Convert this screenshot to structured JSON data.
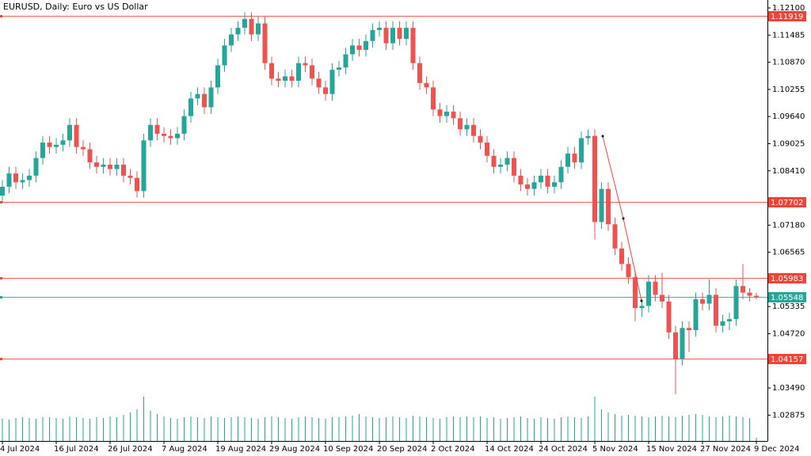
{
  "chart_data": {
    "type": "candlestick",
    "title": "EURUSD, Daily:  Euro vs US Dollar",
    "up_color": "#26a69a",
    "down_color": "#ef5350",
    "volume_color": "#26a69a",
    "categories": [
      "4 Jul 2024",
      null,
      null,
      null,
      null,
      null,
      null,
      null,
      "16 Jul 2024",
      null,
      null,
      null,
      null,
      null,
      null,
      null,
      "26 Jul 2024",
      null,
      null,
      null,
      null,
      null,
      null,
      null,
      "7 Aug 2024",
      null,
      null,
      null,
      null,
      null,
      null,
      null,
      "19 Aug 2024",
      null,
      null,
      null,
      null,
      null,
      null,
      null,
      "29 Aug 2024",
      null,
      null,
      null,
      null,
      null,
      null,
      null,
      "10 Sep 2024",
      null,
      null,
      null,
      null,
      null,
      null,
      null,
      "20 Sep 2024",
      null,
      null,
      null,
      null,
      null,
      null,
      null,
      "2 Oct 2024",
      null,
      null,
      null,
      null,
      null,
      null,
      null,
      "14 Oct 2024",
      null,
      null,
      null,
      null,
      null,
      null,
      null,
      "24 Oct 2024",
      null,
      null,
      null,
      null,
      null,
      null,
      null,
      "5 Nov 2024",
      null,
      null,
      null,
      null,
      null,
      null,
      null,
      "15 Nov 2024",
      null,
      null,
      null,
      null,
      null,
      null,
      null,
      "27 Nov 2024",
      null,
      null,
      null,
      null,
      null,
      null,
      null,
      "9 Dec 2024"
    ],
    "open": [
      1.0785,
      1.0805,
      1.0835,
      1.0815,
      1.082,
      1.083,
      1.087,
      1.0905,
      1.0895,
      1.09,
      1.091,
      1.0945,
      1.0895,
      1.089,
      1.086,
      1.085,
      1.0855,
      1.0845,
      1.0855,
      1.083,
      1.0825,
      1.0795,
      1.091,
      1.0945,
      1.0925,
      1.092,
      1.0915,
      1.0925,
      1.0965,
      1.1005,
      1.1015,
      1.0985,
      1.103,
      1.108,
      1.1125,
      1.115,
      1.1165,
      1.1185,
      1.115,
      1.1175,
      1.1085,
      1.105,
      1.1045,
      1.1055,
      1.1045,
      1.1085,
      1.108,
      1.105,
      1.103,
      1.1015,
      1.107,
      1.1075,
      1.1105,
      1.1125,
      1.1115,
      1.1135,
      1.116,
      1.1165,
      1.113,
      1.1165,
      1.114,
      1.1165,
      1.1085,
      1.104,
      1.103,
      1.098,
      1.0965,
      1.0975,
      1.096,
      1.0935,
      1.0945,
      1.092,
      1.0905,
      1.0875,
      1.085,
      1.0855,
      1.087,
      1.083,
      1.081,
      1.08,
      1.0815,
      1.083,
      1.0805,
      1.0815,
      1.085,
      1.088,
      1.086,
      1.0915,
      1.092,
      1.0725,
      1.08,
      1.072,
      1.0665,
      1.063,
      1.06,
      1.053,
      1.0535,
      1.059,
      1.056,
      1.0545,
      1.0475,
      1.0415,
      1.0485,
      1.048,
      1.055,
      1.054,
      1.056,
      1.049,
      1.05,
      1.0505,
      1.058,
      1.0565,
      1.0558
    ],
    "high": [
      1.082,
      1.085,
      1.085,
      1.0835,
      1.0845,
      1.0885,
      1.092,
      1.092,
      1.0915,
      1.0925,
      1.096,
      1.096,
      1.091,
      1.0905,
      1.0875,
      1.087,
      1.087,
      1.087,
      1.087,
      1.0845,
      1.084,
      1.0925,
      1.096,
      1.096,
      1.094,
      1.0935,
      1.094,
      1.098,
      1.102,
      1.103,
      1.103,
      1.1045,
      1.1095,
      1.114,
      1.1165,
      1.118,
      1.12,
      1.12,
      1.119,
      1.119,
      1.11,
      1.1065,
      1.107,
      1.107,
      1.11,
      1.11,
      1.1095,
      1.1065,
      1.1045,
      1.1085,
      1.109,
      1.112,
      1.114,
      1.114,
      1.115,
      1.1175,
      1.118,
      1.118,
      1.118,
      1.118,
      1.118,
      1.118,
      1.11,
      1.1055,
      1.1045,
      1.0995,
      1.099,
      1.099,
      1.0975,
      1.096,
      1.096,
      1.0935,
      1.092,
      1.089,
      1.087,
      1.0885,
      1.0885,
      1.0845,
      1.0825,
      1.083,
      1.0845,
      1.0845,
      1.083,
      1.0865,
      1.0895,
      1.0895,
      1.093,
      1.0935,
      1.0935,
      1.0815,
      1.0815,
      1.0735,
      1.068,
      1.0645,
      1.0615,
      1.055,
      1.0605,
      1.0605,
      1.061,
      1.056,
      1.049,
      1.05,
      1.05,
      1.0565,
      1.0565,
      1.0595,
      1.0575,
      1.0515,
      1.052,
      1.0595,
      1.063,
      1.0575,
      1.0565
    ],
    "low": [
      1.077,
      1.079,
      1.08,
      1.08,
      1.0805,
      1.0815,
      1.0855,
      1.088,
      1.088,
      1.0885,
      1.0895,
      1.088,
      1.0875,
      1.0845,
      1.0835,
      1.0835,
      1.083,
      1.083,
      1.0815,
      1.081,
      1.078,
      1.078,
      1.0895,
      1.091,
      1.0905,
      1.09,
      1.09,
      1.091,
      1.095,
      1.099,
      1.097,
      1.097,
      1.1015,
      1.1065,
      1.111,
      1.1135,
      1.115,
      1.1135,
      1.1135,
      1.107,
      1.1035,
      1.103,
      1.103,
      1.103,
      1.103,
      1.1065,
      1.1035,
      1.1015,
      1.1,
      1.1,
      1.1055,
      1.106,
      1.109,
      1.11,
      1.11,
      1.112,
      1.1145,
      1.1115,
      1.1115,
      1.1125,
      1.1125,
      1.107,
      1.1025,
      1.1015,
      1.0965,
      1.095,
      1.095,
      1.0945,
      1.092,
      1.092,
      1.0905,
      1.089,
      1.086,
      1.0835,
      1.0835,
      1.084,
      1.0815,
      1.0795,
      1.0785,
      1.0785,
      1.08,
      1.079,
      1.079,
      1.08,
      1.0835,
      1.0845,
      1.0845,
      1.09,
      1.0685,
      1.071,
      1.0705,
      1.065,
      1.0615,
      1.0585,
      1.05,
      1.051,
      1.052,
      1.0545,
      1.053,
      1.046,
      1.0335,
      1.04,
      1.043,
      1.0465,
      1.0525,
      1.0525,
      1.0475,
      1.0475,
      1.048,
      1.049,
      1.055,
      1.0545,
      1.055
    ],
    "close": [
      1.0805,
      1.0835,
      1.0815,
      1.082,
      1.083,
      1.087,
      1.0905,
      1.0895,
      1.09,
      1.091,
      1.0945,
      1.0895,
      1.089,
      1.086,
      1.085,
      1.0855,
      1.0845,
      1.0855,
      1.083,
      1.0825,
      1.0795,
      1.091,
      1.0945,
      1.0925,
      1.092,
      1.0915,
      1.0925,
      1.0965,
      1.1005,
      1.1015,
      1.0985,
      1.103,
      1.108,
      1.1125,
      1.115,
      1.1165,
      1.1185,
      1.115,
      1.1175,
      1.1085,
      1.105,
      1.1045,
      1.1055,
      1.1045,
      1.1085,
      1.108,
      1.105,
      1.103,
      1.1015,
      1.107,
      1.1075,
      1.1105,
      1.1125,
      1.1115,
      1.1135,
      1.116,
      1.1165,
      1.113,
      1.1165,
      1.114,
      1.1165,
      1.1085,
      1.104,
      1.103,
      1.098,
      1.0965,
      1.0975,
      1.096,
      1.0935,
      1.0945,
      1.092,
      1.0905,
      1.0875,
      1.085,
      1.0855,
      1.087,
      1.083,
      1.081,
      1.08,
      1.0815,
      1.083,
      1.0805,
      1.0815,
      1.085,
      1.088,
      1.086,
      1.0915,
      1.092,
      1.0725,
      1.08,
      1.072,
      1.0665,
      1.063,
      1.06,
      1.053,
      1.0535,
      1.059,
      1.056,
      1.0545,
      1.0475,
      1.0415,
      1.0485,
      1.048,
      1.055,
      1.054,
      1.056,
      1.049,
      1.05,
      1.0505,
      1.058,
      1.0565,
      1.0558,
      1.0555
    ],
    "volume": [
      28,
      27,
      29,
      30,
      29,
      28,
      30,
      30,
      29,
      28,
      31,
      30,
      29,
      28,
      30,
      29,
      31,
      30,
      33,
      36,
      40,
      56,
      38,
      34,
      31,
      29,
      28,
      30,
      31,
      30,
      29,
      31,
      30,
      29,
      30,
      31,
      30,
      29,
      28,
      30,
      31,
      30,
      29,
      28,
      30,
      31,
      30,
      29,
      28,
      30,
      30,
      31,
      32,
      34,
      31,
      30,
      29,
      30,
      31,
      30,
      29,
      32,
      31,
      30,
      29,
      28,
      30,
      31,
      30,
      31,
      30,
      31,
      29,
      30,
      28,
      29,
      30,
      31,
      29,
      28,
      30,
      29,
      28,
      30,
      31,
      30,
      29,
      31,
      56,
      40,
      36,
      34,
      32,
      33,
      32,
      31,
      30,
      31,
      32,
      31,
      30,
      32,
      33,
      34,
      33,
      31,
      30,
      31,
      32,
      31,
      30,
      29,
      4
    ],
    "ylim": [
      1.0229,
      1.1228
    ],
    "yticks": [
      {
        "value": 1.121,
        "label": "1.12100"
      },
      1.11485,
      {
        "value": 1.1087,
        "label": "1.10870"
      },
      1.10255,
      {
        "value": 1.0964,
        "label": "1.09640"
      },
      1.09025,
      {
        "value": 1.0841,
        "label": "1.08410"
      },
      {
        "value": 1.0718,
        "label": "1.07180"
      },
      1.06565,
      1.05335,
      {
        "value": 1.0472,
        "label": "1.04720"
      },
      {
        "value": 1.0349,
        "label": "1.03490"
      },
      1.02875
    ],
    "levels": [
      {
        "value": 1.11919,
        "color": "#f44336"
      },
      {
        "value": 1.07702,
        "color": "#f44336"
      },
      {
        "value": 1.05983,
        "color": "#f44336"
      },
      {
        "value": 1.05548,
        "color": "#26a69a"
      },
      {
        "value": 1.04157,
        "color": "#f44336"
      }
    ]
  }
}
